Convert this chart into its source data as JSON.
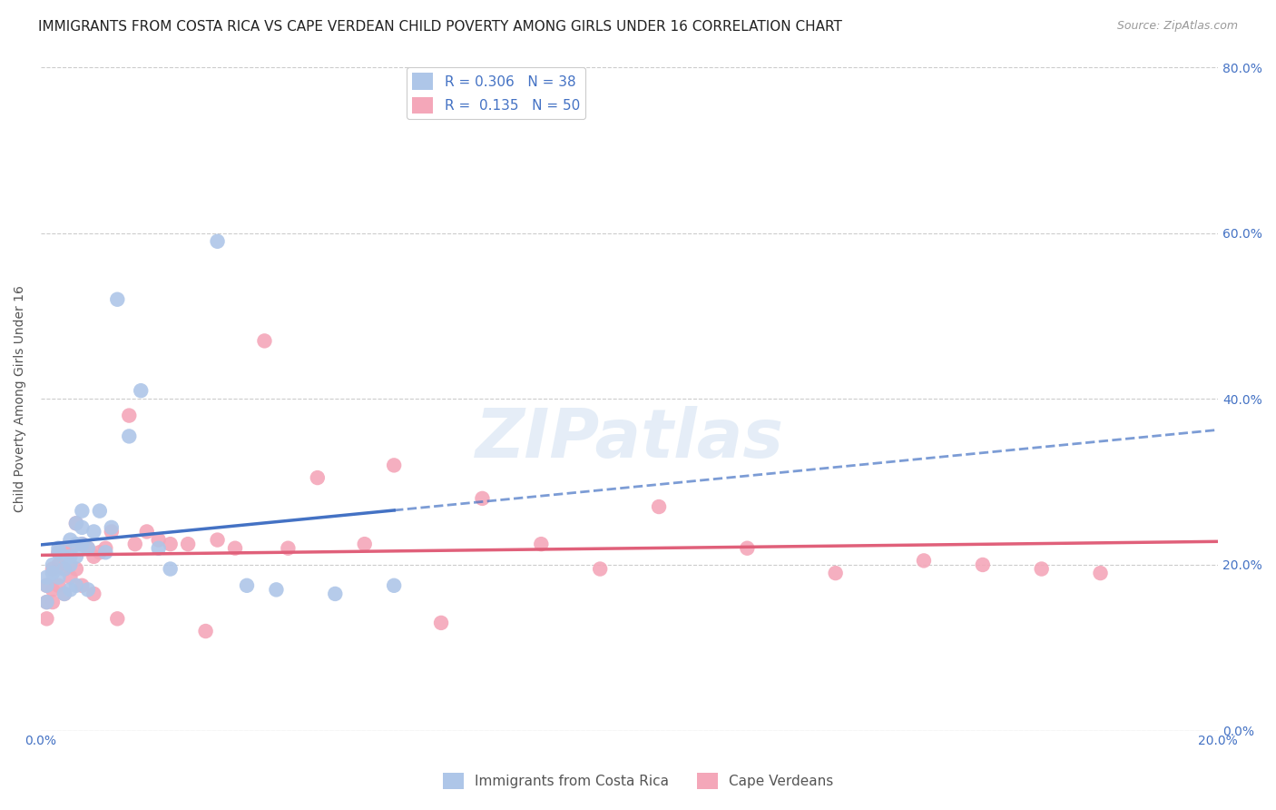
{
  "title": "IMMIGRANTS FROM COSTA RICA VS CAPE VERDEAN CHILD POVERTY AMONG GIRLS UNDER 16 CORRELATION CHART",
  "source": "Source: ZipAtlas.com",
  "ylabel": "Child Poverty Among Girls Under 16",
  "watermark": "ZIPatlas",
  "R_cr": 0.306,
  "N_cr": 38,
  "R_cv": 0.135,
  "N_cv": 50,
  "xmin": 0.0,
  "xmax": 0.2,
  "ymin": 0.0,
  "ymax": 0.8,
  "yticks": [
    0.0,
    0.2,
    0.4,
    0.6,
    0.8
  ],
  "ytick_labels": [
    "0.0%",
    "20.0%",
    "40.0%",
    "60.0%",
    "80.0%"
  ],
  "xticks": [
    0.0,
    0.05,
    0.1,
    0.15,
    0.2
  ],
  "xtick_labels": [
    "0.0%",
    "",
    "",
    "",
    "20.0%"
  ],
  "color_cr": "#aec6e8",
  "color_cv": "#f4a7b9",
  "line_color_cr": "#4472c4",
  "line_color_cv": "#e0607a",
  "background_color": "#ffffff",
  "grid_color": "#cccccc",
  "right_axis_label_color": "#4472c4",
  "title_fontsize": 11,
  "source_fontsize": 9,
  "tick_fontsize": 10,
  "ylabel_fontsize": 10,
  "cr_scatter_x": [
    0.001,
    0.001,
    0.001,
    0.002,
    0.002,
    0.003,
    0.003,
    0.003,
    0.004,
    0.004,
    0.004,
    0.005,
    0.005,
    0.005,
    0.005,
    0.006,
    0.006,
    0.006,
    0.006,
    0.007,
    0.007,
    0.007,
    0.008,
    0.008,
    0.009,
    0.01,
    0.011,
    0.012,
    0.013,
    0.015,
    0.017,
    0.02,
    0.022,
    0.03,
    0.035,
    0.04,
    0.05,
    0.06
  ],
  "cr_scatter_y": [
    0.175,
    0.185,
    0.155,
    0.2,
    0.19,
    0.215,
    0.22,
    0.185,
    0.21,
    0.195,
    0.165,
    0.23,
    0.21,
    0.2,
    0.17,
    0.25,
    0.225,
    0.21,
    0.175,
    0.265,
    0.225,
    0.245,
    0.22,
    0.17,
    0.24,
    0.265,
    0.215,
    0.245,
    0.52,
    0.355,
    0.41,
    0.22,
    0.195,
    0.59,
    0.175,
    0.17,
    0.165,
    0.175
  ],
  "cv_scatter_x": [
    0.001,
    0.001,
    0.001,
    0.002,
    0.002,
    0.002,
    0.003,
    0.003,
    0.003,
    0.004,
    0.004,
    0.004,
    0.005,
    0.005,
    0.006,
    0.006,
    0.007,
    0.007,
    0.008,
    0.009,
    0.009,
    0.01,
    0.011,
    0.012,
    0.013,
    0.015,
    0.016,
    0.018,
    0.02,
    0.022,
    0.025,
    0.028,
    0.03,
    0.033,
    0.038,
    0.042,
    0.047,
    0.055,
    0.06,
    0.068,
    0.075,
    0.085,
    0.095,
    0.105,
    0.12,
    0.135,
    0.15,
    0.16,
    0.17,
    0.18
  ],
  "cv_scatter_y": [
    0.175,
    0.155,
    0.135,
    0.195,
    0.17,
    0.155,
    0.215,
    0.2,
    0.175,
    0.22,
    0.195,
    0.165,
    0.215,
    0.185,
    0.25,
    0.195,
    0.225,
    0.175,
    0.22,
    0.21,
    0.165,
    0.215,
    0.22,
    0.24,
    0.135,
    0.38,
    0.225,
    0.24,
    0.23,
    0.225,
    0.225,
    0.12,
    0.23,
    0.22,
    0.47,
    0.22,
    0.305,
    0.225,
    0.32,
    0.13,
    0.28,
    0.225,
    0.195,
    0.27,
    0.22,
    0.19,
    0.205,
    0.2,
    0.195,
    0.19
  ]
}
